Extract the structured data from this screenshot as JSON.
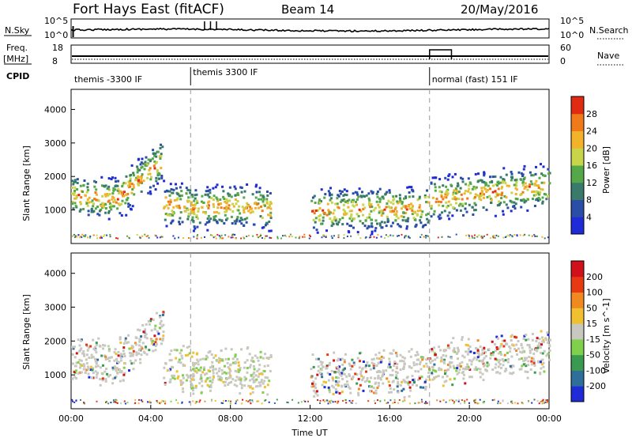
{
  "header": {
    "station": "Fort Hays East (fitACF)",
    "beam": "Beam 14",
    "date": "20/May/2016"
  },
  "chart_data": [
    {
      "type": "line",
      "panel": "sky-noise",
      "left_label": "N.Sky",
      "right_label": "N.Search",
      "left_ticks": [
        "10^5",
        "10^0"
      ],
      "right_ticks": [
        "10^5",
        "10^0"
      ],
      "x_range_hours": [
        0,
        24
      ]
    },
    {
      "type": "line",
      "panel": "frequency-nave",
      "left_label_line1": "Freq.",
      "left_label_line2": "[MHz]",
      "right_label": "Nave",
      "left_ticks": [
        "18",
        "8"
      ],
      "right_ticks": [
        "60",
        "0"
      ],
      "nave_step": {
        "x_start": 18.0,
        "x_end": 19.1,
        "level": 45
      }
    },
    {
      "type": "table",
      "panel": "cpid",
      "label": "CPID",
      "segments": [
        {
          "x_start": 0,
          "x_end": 6,
          "name": "themis -3300 IF"
        },
        {
          "x_start": 6,
          "x_end": 18,
          "name": "themis 3300 IF"
        },
        {
          "x_start": 18,
          "x_end": 24,
          "name": "normal (fast) 151 IF"
        }
      ]
    },
    {
      "type": "heatmap",
      "panel": "power",
      "ylabel": "Slant Range [km]",
      "y_ticks": [
        1000,
        2000,
        3000,
        4000
      ],
      "ylim": [
        0,
        4600
      ],
      "xlim": [
        0,
        24
      ],
      "colorbar_label": "Power [dB]",
      "colorbar_ticks": [
        4,
        8,
        12,
        16,
        20,
        24,
        28
      ],
      "colorbar_colors": [
        "#1f2bd6",
        "#2a4ea8",
        "#3a7a6a",
        "#55a84a",
        "#c8d44a",
        "#f2b22a",
        "#f07a1a",
        "#e02a12"
      ],
      "band_ranges_km": [
        {
          "x_start": 0.0,
          "x_end": 2.3,
          "center": 1450,
          "width": 250
        },
        {
          "x_start": 2.3,
          "x_end": 4.6,
          "center": 1800,
          "width": 400
        },
        {
          "x_start": 5.0,
          "x_end": 10.0,
          "center": 1000,
          "width": 350
        },
        {
          "x_start": 12.2,
          "x_end": 16.5,
          "center": 1000,
          "width": 300
        },
        {
          "x_start": 18.0,
          "x_end": 24.0,
          "center": 1700,
          "width": 350
        }
      ]
    },
    {
      "type": "heatmap",
      "panel": "velocity",
      "ylabel": "Slant Range [km]",
      "xlabel": "Time UT",
      "y_ticks": [
        1000,
        2000,
        3000,
        4000
      ],
      "ylim": [
        0,
        4600
      ],
      "xlim": [
        0,
        24
      ],
      "x_ticks": [
        "00:00",
        "04:00",
        "08:00",
        "12:00",
        "16:00",
        "20:00",
        "00:00"
      ],
      "colorbar_label": "Velocity [m s^-1]",
      "colorbar_ticks": [
        200,
        100,
        50,
        15,
        -15,
        -50,
        -100,
        -200
      ],
      "colorbar_colors": [
        "#1f2bd6",
        "#2e6e9a",
        "#3a9a50",
        "#7fd04a",
        "#c8c8c0",
        "#f0c030",
        "#f08a20",
        "#e83a12",
        "#d0101a"
      ]
    }
  ]
}
